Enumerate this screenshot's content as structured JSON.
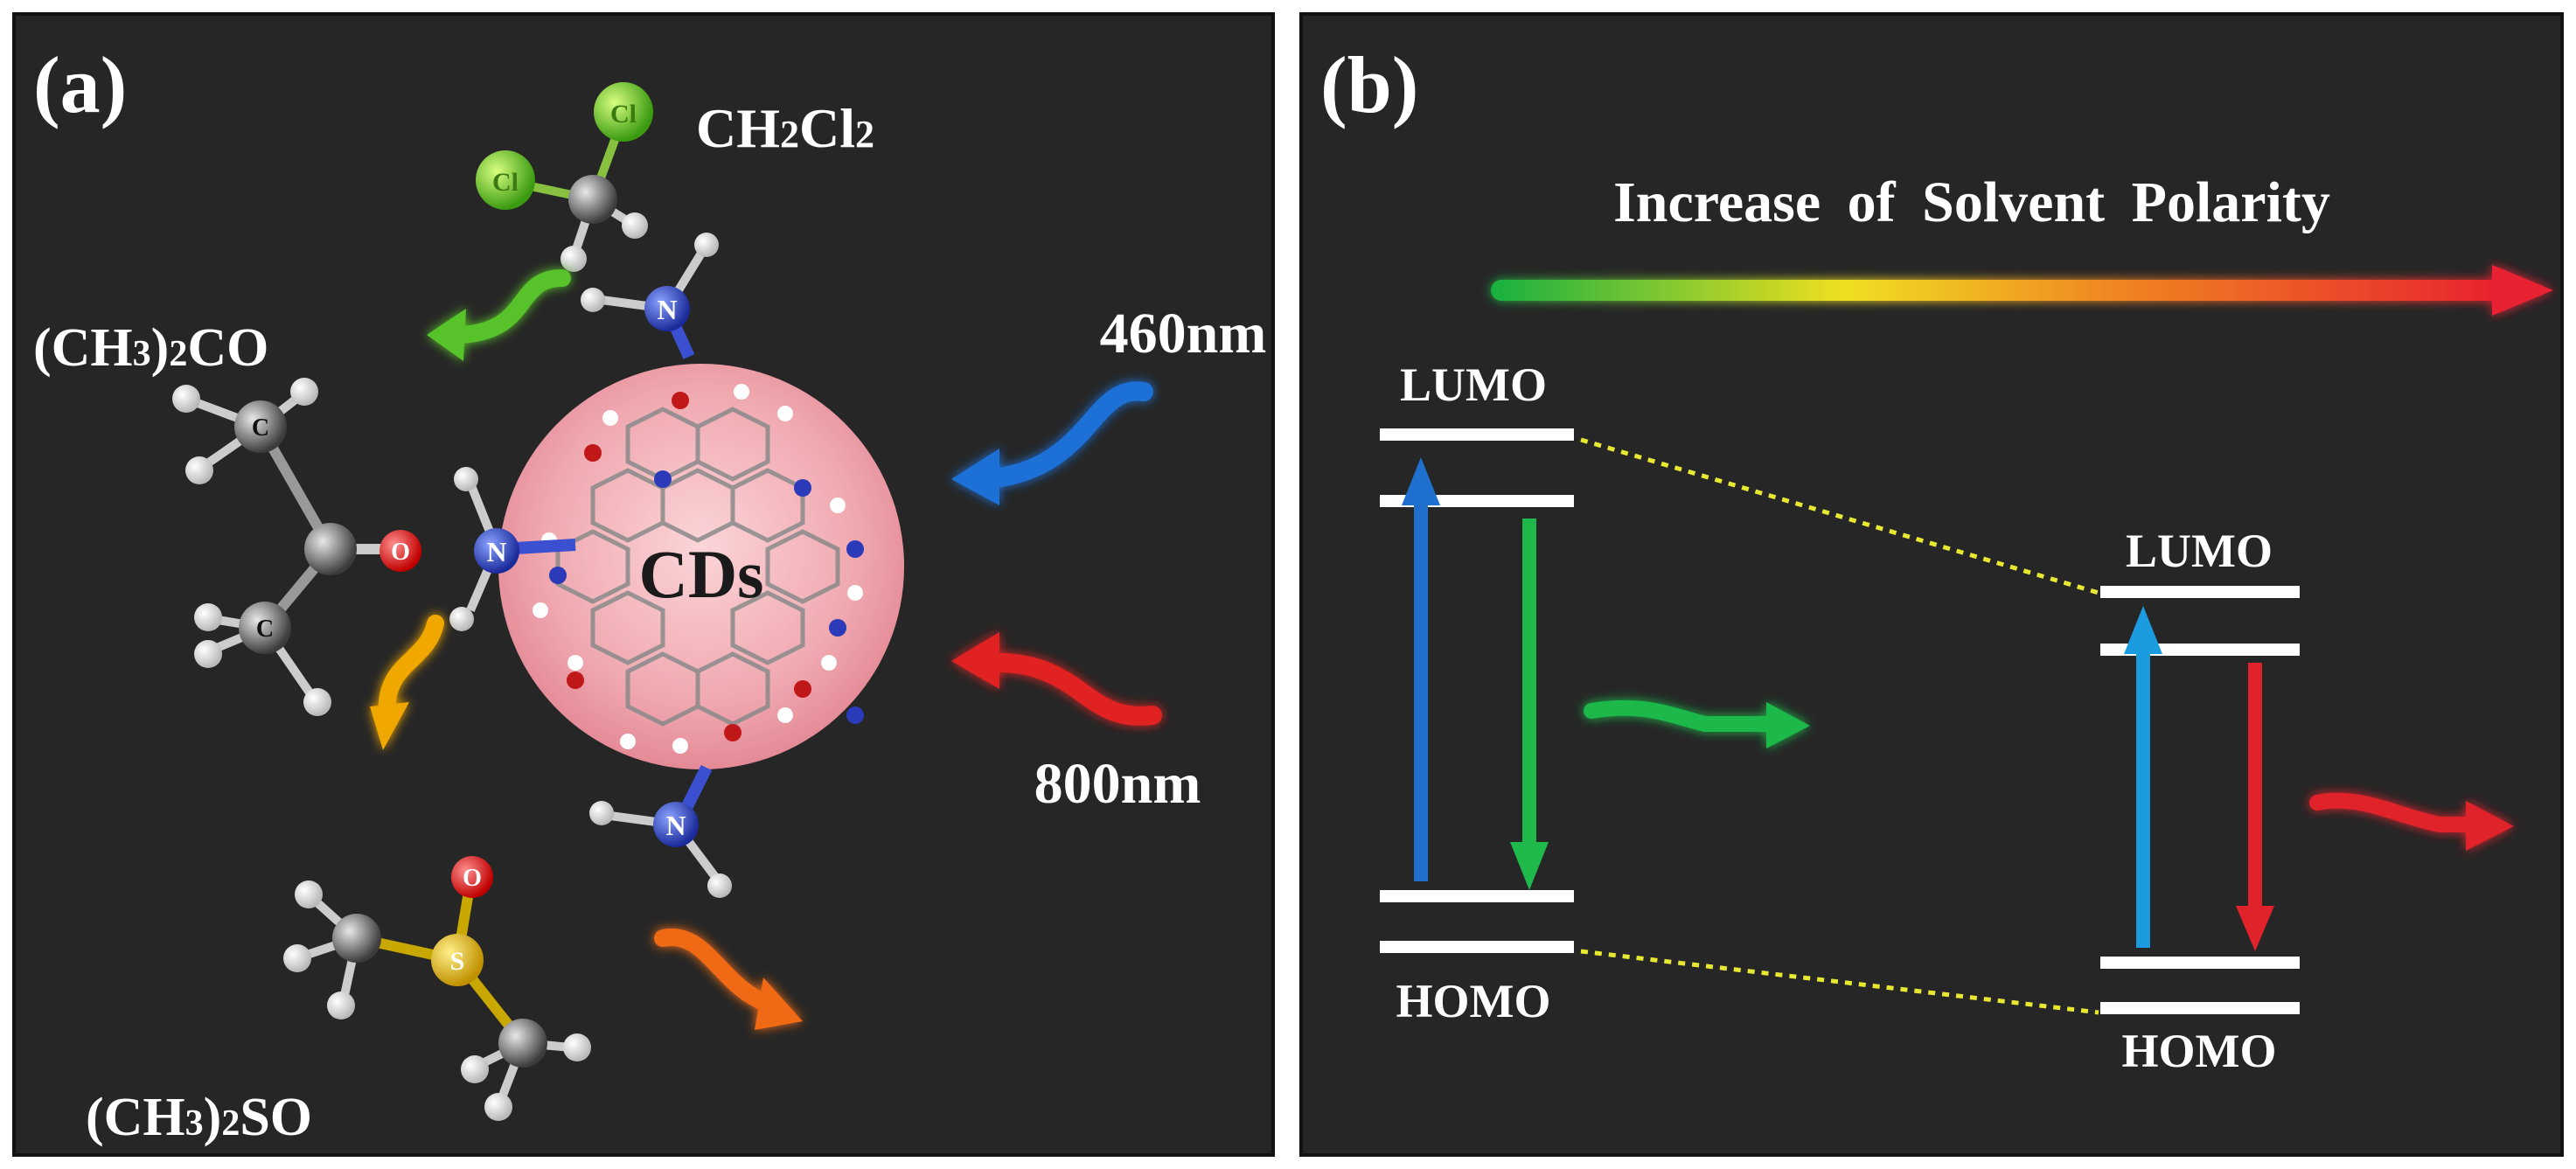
{
  "panel_a": {
    "label": "(a)",
    "core_label": "CDs",
    "molecules": {
      "dichloromethane": {
        "formula": "CH2Cl2",
        "main": "CH",
        "sub1": "2",
        "mid": "Cl",
        "sub2": "2",
        "atom_cl": "Cl"
      },
      "acetone": {
        "formula": "(CH3)2CO",
        "pre": "(CH",
        "sub1": "3",
        "mid": ")",
        "sub2": "2",
        "post": "CO",
        "atom_c": "C",
        "atom_o": "O"
      },
      "dmso": {
        "formula": "(CH3)2SO",
        "pre": "(CH",
        "sub1": "3",
        "mid": ")",
        "sub2": "2",
        "post": "SO",
        "atom_s": "S",
        "atom_o": "O"
      }
    },
    "amine_atom": "N",
    "excitation": [
      {
        "label": "460nm",
        "color": "#1e6fd6"
      },
      {
        "label": "800nm",
        "color": "#e02020"
      }
    ],
    "emission_colors": {
      "ch2cl2": "#58c22a",
      "acetone": "#f0a800",
      "dmso": "#f06a18"
    }
  },
  "panel_b": {
    "label": "(b)",
    "polarity_label": "Increase of Solvent Polarity",
    "left_levels": {
      "lumo": "LUMO",
      "homo": "HOMO"
    },
    "right_levels": {
      "lumo": "LUMO",
      "homo": "HOMO"
    },
    "colors": {
      "absorb_left": "#1f6fce",
      "emit_left": "#1fb84a",
      "absorb_right": "#1c9ce0",
      "emit_right": "#e0222a",
      "dotted": "#e8e832"
    }
  }
}
